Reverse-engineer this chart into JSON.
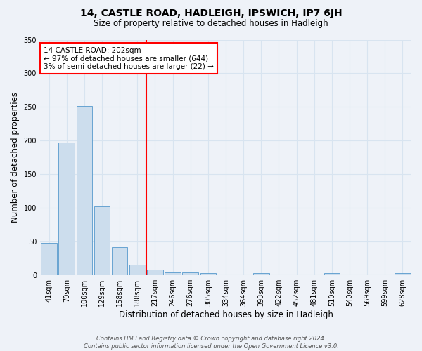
{
  "title": "14, CASTLE ROAD, HADLEIGH, IPSWICH, IP7 6JH",
  "subtitle": "Size of property relative to detached houses in Hadleigh",
  "xlabel": "Distribution of detached houses by size in Hadleigh",
  "ylabel": "Number of detached properties",
  "bin_labels": [
    "41sqm",
    "70sqm",
    "100sqm",
    "129sqm",
    "158sqm",
    "188sqm",
    "217sqm",
    "246sqm",
    "276sqm",
    "305sqm",
    "334sqm",
    "364sqm",
    "393sqm",
    "422sqm",
    "452sqm",
    "481sqm",
    "510sqm",
    "540sqm",
    "569sqm",
    "599sqm",
    "628sqm"
  ],
  "bin_values": [
    48,
    197,
    251,
    102,
    42,
    16,
    9,
    4,
    4,
    3,
    0,
    0,
    3,
    0,
    0,
    0,
    3,
    0,
    0,
    0,
    3
  ],
  "bar_color": "#ccdded",
  "bar_edge_color": "#5599cc",
  "grid_color": "#d8e4f0",
  "background_color": "#eef2f8",
  "red_line_bin_index": 6,
  "annotation_line1": "14 CASTLE ROAD: 202sqm",
  "annotation_line2": "← 97% of detached houses are smaller (644)",
  "annotation_line3": "3% of semi-detached houses are larger (22) →",
  "annotation_box_color": "white",
  "annotation_box_edge_color": "red",
  "footer_text": "Contains HM Land Registry data © Crown copyright and database right 2024.\nContains public sector information licensed under the Open Government Licence v3.0.",
  "ylim": [
    0,
    350
  ],
  "yticks": [
    0,
    50,
    100,
    150,
    200,
    250,
    300,
    350
  ]
}
